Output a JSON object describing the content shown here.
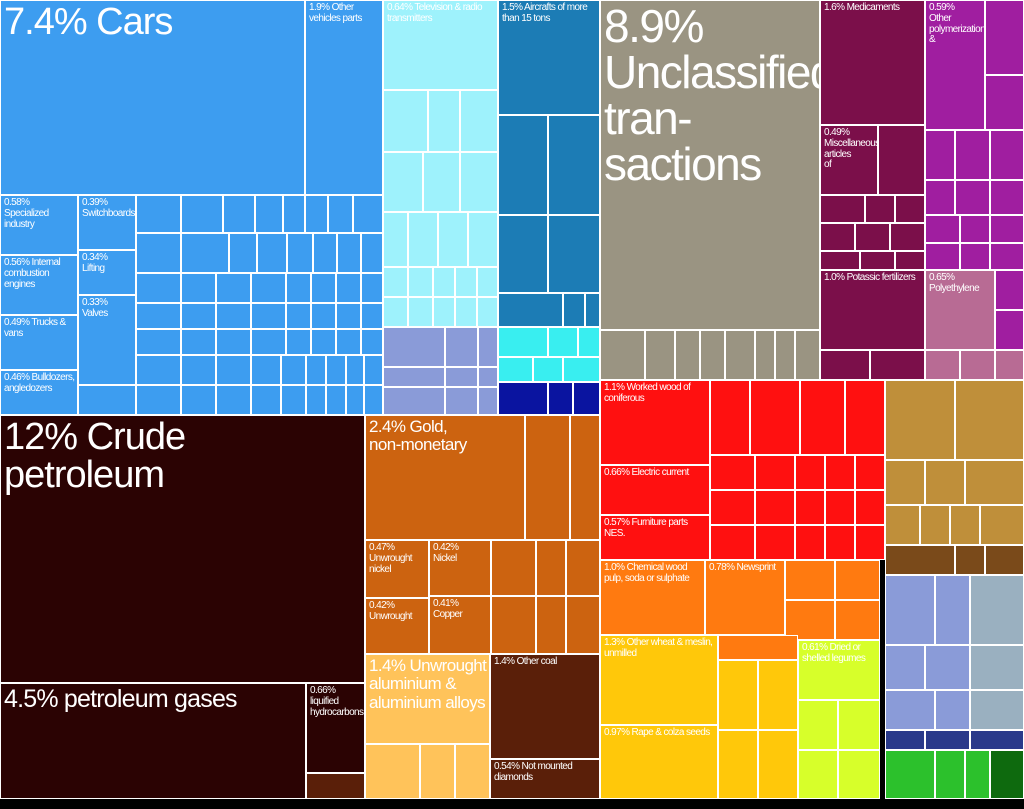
{
  "chart_data": {
    "type": "treemap",
    "colors": {
      "machinery": "#3d9df0",
      "machinery_light": "#9ef2fc",
      "machinery_mid": "#1c7cb5",
      "unclassified": "#9a9482",
      "chemicals": "#7b0f4a",
      "chemicals2": "#a01ea0",
      "plastics": "#b86b94",
      "petroleum": "#2b0303",
      "metals": "#cc6310",
      "aluminium": "#ffc35a",
      "coal": "#5a1f09",
      "wood": "#ff1010",
      "paper": "#ff7a10",
      "cereals": "#ffc80a",
      "legumes": "#d7ff2a",
      "textiles": "#bf8f3a",
      "transport": "#8a9bd8",
      "vegetable": "#2cc12c"
    },
    "items": [
      {
        "label": "7.4% Cars",
        "value": 7.4,
        "group": "machinery",
        "size": "xl"
      },
      {
        "label": "1.9% Other vehicles parts",
        "value": 1.9,
        "group": "machinery",
        "size": "sm"
      },
      {
        "label": "0.58% Specialized industry",
        "value": 0.58,
        "group": "machinery",
        "size": "sm"
      },
      {
        "label": "0.56% Internal combustion engines",
        "value": 0.56,
        "group": "machinery",
        "size": "sm"
      },
      {
        "label": "0.49% Trucks & vans",
        "value": 0.49,
        "group": "machinery",
        "size": "sm"
      },
      {
        "label": "0.46% Bulldozers, angledozers",
        "value": 0.46,
        "group": "machinery",
        "size": "sm"
      },
      {
        "label": "0.39% Switchboards,",
        "value": 0.39,
        "group": "machinery",
        "size": "sm"
      },
      {
        "label": "0.34% Lifting",
        "value": 0.34,
        "group": "machinery",
        "size": "sm"
      },
      {
        "label": "0.33% Valves",
        "value": 0.33,
        "group": "machinery",
        "size": "sm"
      },
      {
        "label": "0.64% Television & radio transmitters",
        "value": 0.64,
        "group": "machinery_light",
        "size": "sm"
      },
      {
        "label": "1.5% Aircrafts of more than 15 tons",
        "value": 1.5,
        "group": "machinery_mid",
        "size": "sm"
      },
      {
        "label": "8.9% Unclassified tran-sactions",
        "value": 8.9,
        "group": "unclassified",
        "size": "xxl"
      },
      {
        "label": "1.6% Medicaments",
        "value": 1.6,
        "group": "chemicals",
        "size": "sm"
      },
      {
        "label": "0.49% Miscellaneous articles of",
        "value": 0.49,
        "group": "chemicals",
        "size": "sm"
      },
      {
        "label": "1.0% Potassic fertilizers",
        "value": 1.0,
        "group": "chemicals",
        "size": "sm"
      },
      {
        "label": "0.59% Other polymerization &",
        "value": 0.59,
        "group": "chemicals2",
        "size": "sm"
      },
      {
        "label": "0.65% Polyethylene",
        "value": 0.65,
        "group": "plastics",
        "size": "sm"
      },
      {
        "label": "12% Crude petroleum",
        "value": 12,
        "group": "petroleum",
        "size": "xl"
      },
      {
        "label": "4.5% petroleum gases",
        "value": 4.5,
        "group": "petroleum",
        "size": "lg"
      },
      {
        "label": "0.66% liquified hydrocarbons",
        "value": 0.66,
        "group": "petroleum",
        "size": "sm"
      },
      {
        "label": "2.4% Gold, non-monetary",
        "value": 2.4,
        "group": "metals",
        "size": "md"
      },
      {
        "label": "0.47% Unwrought nickel",
        "value": 0.47,
        "group": "metals",
        "size": "sm"
      },
      {
        "label": "0.42% Nickel",
        "value": 0.42,
        "group": "metals",
        "size": "sm"
      },
      {
        "label": "0.42% Unwrought",
        "value": 0.42,
        "group": "metals",
        "size": "sm"
      },
      {
        "label": "0.41% Copper",
        "value": 0.41,
        "group": "metals",
        "size": "sm"
      },
      {
        "label": "1.4% Unwrought aluminium & aluminium alloys",
        "value": 1.4,
        "group": "aluminium",
        "size": "md"
      },
      {
        "label": "1.4% Other coal",
        "value": 1.4,
        "group": "coal",
        "size": "sm"
      },
      {
        "label": "0.54% Not mounted diamonds",
        "value": 0.54,
        "group": "coal",
        "size": "sm"
      },
      {
        "label": "1.1% Worked wood of coniferous",
        "value": 1.1,
        "group": "wood",
        "size": "sm"
      },
      {
        "label": "0.66% Electric current",
        "value": 0.66,
        "group": "wood",
        "size": "sm"
      },
      {
        "label": "0.57% Furniture parts NES.",
        "value": 0.57,
        "group": "wood",
        "size": "sm"
      },
      {
        "label": "1.0% Chemical wood pulp, soda or sulphate",
        "value": 1.0,
        "group": "paper",
        "size": "sm"
      },
      {
        "label": "0.78% Newsprint",
        "value": 0.78,
        "group": "paper",
        "size": "sm"
      },
      {
        "label": "1.3% Other wheat & meslin, unmilled",
        "value": 1.3,
        "group": "cereals",
        "size": "sm"
      },
      {
        "label": "0.97% Rape & colza seeds",
        "value": 0.97,
        "group": "cereals",
        "size": "sm"
      },
      {
        "label": "0.61% Dried or shelled legumes",
        "value": 0.61,
        "group": "legumes",
        "size": "sm"
      }
    ]
  }
}
